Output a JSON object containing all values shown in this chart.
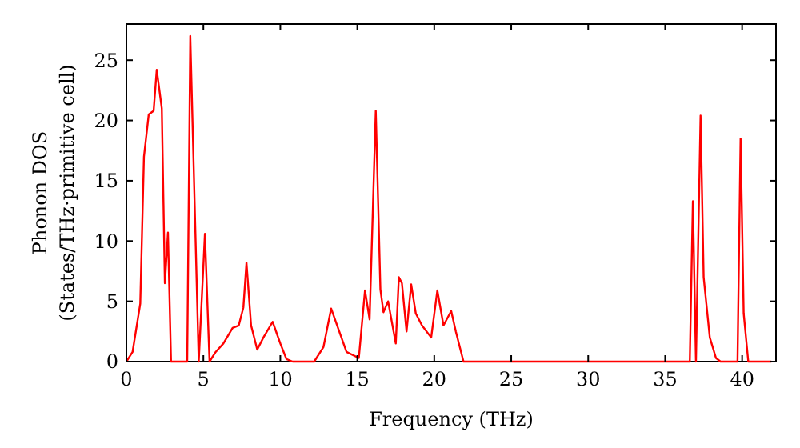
{
  "chart_data": {
    "type": "line",
    "xlabel": "Frequency (THz)",
    "ylabel": "Phonon DOS\n(States/THz·primitive cell)",
    "xlim": [
      0,
      42.2
    ],
    "ylim": [
      0,
      28
    ],
    "xticks": [
      0,
      5,
      10,
      15,
      20,
      25,
      30,
      35,
      40
    ],
    "yticks": [
      0,
      5,
      10,
      15,
      20,
      25
    ],
    "grid": false,
    "line_style": "solid",
    "marker": "none",
    "series": [
      {
        "color": "#ff0000",
        "x": [
          0,
          0.4,
          0.9,
          1.14,
          1.45,
          1.77,
          1.97,
          2.3,
          2.5,
          2.7,
          2.9,
          3.95,
          4.15,
          4.7,
          5.1,
          5.4,
          5.8,
          6.3,
          6.9,
          7.3,
          7.6,
          7.8,
          8.1,
          8.5,
          8.9,
          9.5,
          10.0,
          10.4,
          10.8,
          12.2,
          12.8,
          13.3,
          14.3,
          15.1,
          15.5,
          15.8,
          16.2,
          16.5,
          16.7,
          17.0,
          17.5,
          17.7,
          17.9,
          18.2,
          18.5,
          18.8,
          19.2,
          19.8,
          20.2,
          20.6,
          21.1,
          21.4,
          21.9,
          36.6,
          36.8,
          37.0,
          37.3,
          37.5,
          37.9,
          38.3,
          38.6,
          39.7,
          39.9,
          40.1,
          40.4,
          41.9
        ],
        "values": [
          0,
          0.8,
          4.8,
          17,
          20.5,
          20.8,
          24.2,
          21,
          6.5,
          10.7,
          0,
          0,
          27,
          0,
          10.6,
          0,
          0.8,
          1.5,
          2.8,
          3,
          4.5,
          8.2,
          3,
          1,
          2,
          3.3,
          1.5,
          0.2,
          0,
          0,
          1.2,
          4.4,
          0.8,
          0.3,
          5.9,
          3.5,
          20.8,
          6,
          4.1,
          5,
          1.5,
          7,
          6.5,
          2.5,
          6.4,
          4,
          3,
          2,
          5.9,
          3,
          4.2,
          2.5,
          0,
          0,
          13.3,
          0,
          20.4,
          7,
          2,
          0.3,
          0,
          0,
          18.5,
          4,
          0,
          0
        ]
      }
    ]
  }
}
